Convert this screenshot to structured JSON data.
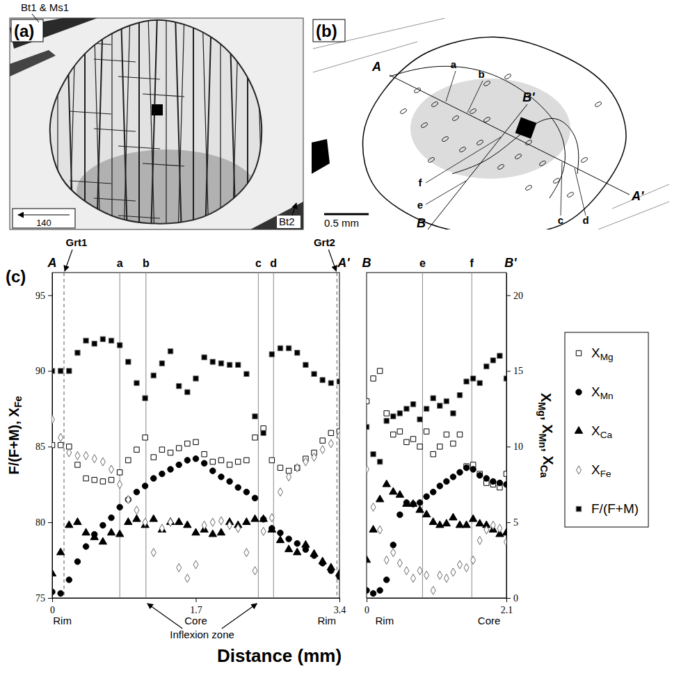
{
  "panels": {
    "a": {
      "label": "(a)",
      "mineral_labels": [
        "Bt1 & Ms1",
        "Bt2"
      ],
      "scale_label": "140"
    },
    "b": {
      "label": "(b)",
      "section_labels": [
        "A",
        "A'",
        "B",
        "B'"
      ],
      "point_labels": [
        "a",
        "b",
        "c",
        "d",
        "e",
        "f"
      ],
      "scale_bar": "0.5 mm"
    },
    "c": {
      "label": "(c)",
      "x_label": "Distance (mm)"
    }
  },
  "chart_data": [
    {
      "type": "scatter",
      "xlim": [
        0,
        3.4
      ],
      "xticks": [
        0,
        1.7,
        3.4
      ],
      "ylim": [
        75,
        96.5
      ],
      "yticks": [
        75,
        80,
        85,
        90,
        95
      ],
      "y2lim": [
        0,
        21.5
      ],
      "y_label": "F/(F+M), XFe",
      "end_labels": [
        "A",
        "A'"
      ],
      "profile_lines": [
        {
          "x": 0.8,
          "label": "a"
        },
        {
          "x": 1.11,
          "label": "b"
        },
        {
          "x": 2.44,
          "label": "c"
        },
        {
          "x": 2.62,
          "label": "d"
        }
      ],
      "boundaries": [
        {
          "x": 0.14,
          "label": "Grt1"
        },
        {
          "x": 3.37,
          "label": "Grt2"
        }
      ],
      "x_annotations": [
        {
          "x": 0.12,
          "label": "Rim"
        },
        {
          "x": 1.7,
          "label": "Core"
        },
        {
          "x": 3.25,
          "label": "Rim"
        }
      ],
      "inflexion_zone": {
        "label": "Inflexion zone",
        "x": [
          1.11,
          2.44
        ]
      },
      "x": [
        0,
        0.1,
        0.2,
        0.3,
        0.4,
        0.5,
        0.6,
        0.7,
        0.8,
        0.9,
        1.0,
        1.1,
        1.2,
        1.3,
        1.4,
        1.5,
        1.6,
        1.7,
        1.8,
        1.9,
        2.0,
        2.1,
        2.2,
        2.3,
        2.4,
        2.5,
        2.6,
        2.7,
        2.8,
        2.9,
        3.0,
        3.1,
        3.2,
        3.3,
        3.4
      ],
      "series": [
        {
          "name": "XMg",
          "axis": "y2",
          "marker": "square-open",
          "color": "#000000",
          "values": [
            10.1,
            10.1,
            10.0,
            8.8,
            7.9,
            7.8,
            7.7,
            7.8,
            8.3,
            9.1,
            9.8,
            10.6,
            9.3,
            9.8,
            9.6,
            9.9,
            10.2,
            10.3,
            9.5,
            9.0,
            9.1,
            8.8,
            9.0,
            9.1,
            10.6,
            11.2,
            9.1,
            8.6,
            8.4,
            8.6,
            9.2,
            9.6,
            10.4,
            10.9,
            11.0
          ]
        },
        {
          "name": "XMn",
          "axis": "y2",
          "marker": "circle",
          "color": "#000000",
          "values": [
            0.4,
            0.3,
            1.2,
            2.4,
            3.4,
            4.2,
            4.8,
            5.3,
            6.0,
            6.5,
            7.0,
            7.4,
            7.9,
            8.2,
            8.5,
            8.8,
            9.1,
            9.2,
            8.9,
            8.4,
            8.0,
            7.7,
            7.3,
            7.0,
            6.6,
            5.2,
            4.6,
            4.3,
            3.9,
            3.6,
            3.2,
            2.8,
            2.3,
            1.8,
            1.4
          ]
        },
        {
          "name": "XCa",
          "axis": "y2",
          "marker": "triangle",
          "color": "#000000",
          "values": [
            1.6,
            3.0,
            4.8,
            5.0,
            4.3,
            4.0,
            3.7,
            4.3,
            4.2,
            5.0,
            5.2,
            4.8,
            5.2,
            4.5,
            5.0,
            5.0,
            4.8,
            4.3,
            4.5,
            4.2,
            4.3,
            5.0,
            4.8,
            5.0,
            5.2,
            5.2,
            4.5,
            3.8,
            3.2,
            3.0,
            3.5,
            2.9,
            2.4,
            2.0,
            1.6
          ]
        },
        {
          "name": "XFe",
          "axis": "y",
          "marker": "diamond-open",
          "color": "#666666",
          "values": [
            86.8,
            85.6,
            84.6,
            84.4,
            84.4,
            84.2,
            84.0,
            83.5,
            82.5,
            81.5,
            80.8,
            80.0,
            78.0,
            79.6,
            80.0,
            77.0,
            76.3,
            77.2,
            79.8,
            80.0,
            80.1,
            79.8,
            79.6,
            78.0,
            76.8,
            79.4,
            80.3,
            82.0,
            83.0,
            83.6,
            84.0,
            84.3,
            84.8,
            85.2,
            85.7
          ]
        },
        {
          "name": "F/(F+M)",
          "axis": "y",
          "marker": "square",
          "color": "#000000",
          "values": [
            90.0,
            90.0,
            90.0,
            91.2,
            92.0,
            91.8,
            92.1,
            92.0,
            91.7,
            90.6,
            89.2,
            88.2,
            89.7,
            90.5,
            91.3,
            89.0,
            88.6,
            89.5,
            90.9,
            90.6,
            90.5,
            90.4,
            90.4,
            89.8,
            87.0,
            85.9,
            91.1,
            91.5,
            91.5,
            91.2,
            90.4,
            89.8,
            89.4,
            89.2,
            89.3
          ]
        }
      ]
    },
    {
      "type": "scatter",
      "xlim": [
        0,
        2.1
      ],
      "xticks": [
        0,
        2.1
      ],
      "ylim": [
        75,
        96.5
      ],
      "y2lim": [
        0,
        21.5
      ],
      "y2ticks": [
        0,
        5,
        10,
        15,
        20
      ],
      "y2_label": "XMg, XMn, XCa",
      "legend": "right",
      "end_labels": [
        "B",
        "B'"
      ],
      "profile_lines": [
        {
          "x": 0.84,
          "label": "e"
        },
        {
          "x": 1.58,
          "label": "f"
        }
      ],
      "x_annotations": [
        {
          "x": 0.27,
          "label": "Rim"
        },
        {
          "x": 1.84,
          "label": "Core"
        }
      ],
      "x": [
        0,
        0.1,
        0.2,
        0.3,
        0.4,
        0.5,
        0.6,
        0.7,
        0.8,
        0.9,
        1.0,
        1.1,
        1.2,
        1.3,
        1.4,
        1.5,
        1.6,
        1.7,
        1.8,
        1.9,
        2.0,
        2.1
      ],
      "series": [
        {
          "name": "XMg",
          "axis": "y2",
          "marker": "square-open",
          "color": "#000000",
          "values": [
            13.0,
            14.5,
            15.0,
            12.2,
            10.8,
            11.0,
            10.3,
            10.5,
            10.0,
            11.0,
            9.5,
            10.0,
            10.8,
            10.2,
            10.8,
            8.7,
            8.8,
            8.2,
            7.6,
            7.5,
            7.3,
            8.2
          ]
        },
        {
          "name": "XMn",
          "axis": "y2",
          "marker": "circle",
          "color": "#000000",
          "values": [
            0.5,
            0.3,
            0.5,
            1.2,
            3.5,
            5.5,
            6.3,
            6.2,
            6.3,
            6.7,
            7.0,
            7.4,
            7.7,
            8.0,
            8.3,
            8.6,
            8.5,
            8.1,
            7.9,
            7.7,
            7.6,
            7.5
          ]
        },
        {
          "name": "XCa",
          "axis": "y2",
          "marker": "triangle",
          "color": "#000000",
          "values": [
            2.5,
            4.5,
            6.5,
            7.5,
            7.0,
            6.8,
            6.2,
            6.2,
            5.8,
            5.5,
            5.0,
            4.8,
            4.9,
            5.3,
            4.8,
            4.8,
            5.2,
            4.9,
            4.8,
            4.5,
            4.2,
            4.3
          ]
        },
        {
          "name": "XFe",
          "axis": "y",
          "marker": "diamond-open",
          "color": "#666666",
          "values": [
            83.5,
            81.0,
            79.5,
            77.5,
            78.0,
            77.3,
            76.8,
            76.3,
            76.8,
            76.5,
            75.5,
            76.5,
            76.3,
            76.7,
            77.2,
            77.0,
            77.5,
            78.8,
            79.5,
            79.8,
            79.6,
            78.7
          ]
        },
        {
          "name": "F/(F+M)",
          "axis": "y",
          "marker": "square",
          "color": "#000000",
          "values": [
            86.3,
            84.5,
            84.0,
            86.7,
            87.0,
            87.2,
            87.5,
            87.8,
            86.8,
            87.5,
            88.2,
            87.7,
            88.0,
            87.2,
            88.4,
            89.3,
            89.5,
            89.2,
            90.3,
            90.7,
            91.0,
            89.5
          ]
        }
      ]
    }
  ]
}
